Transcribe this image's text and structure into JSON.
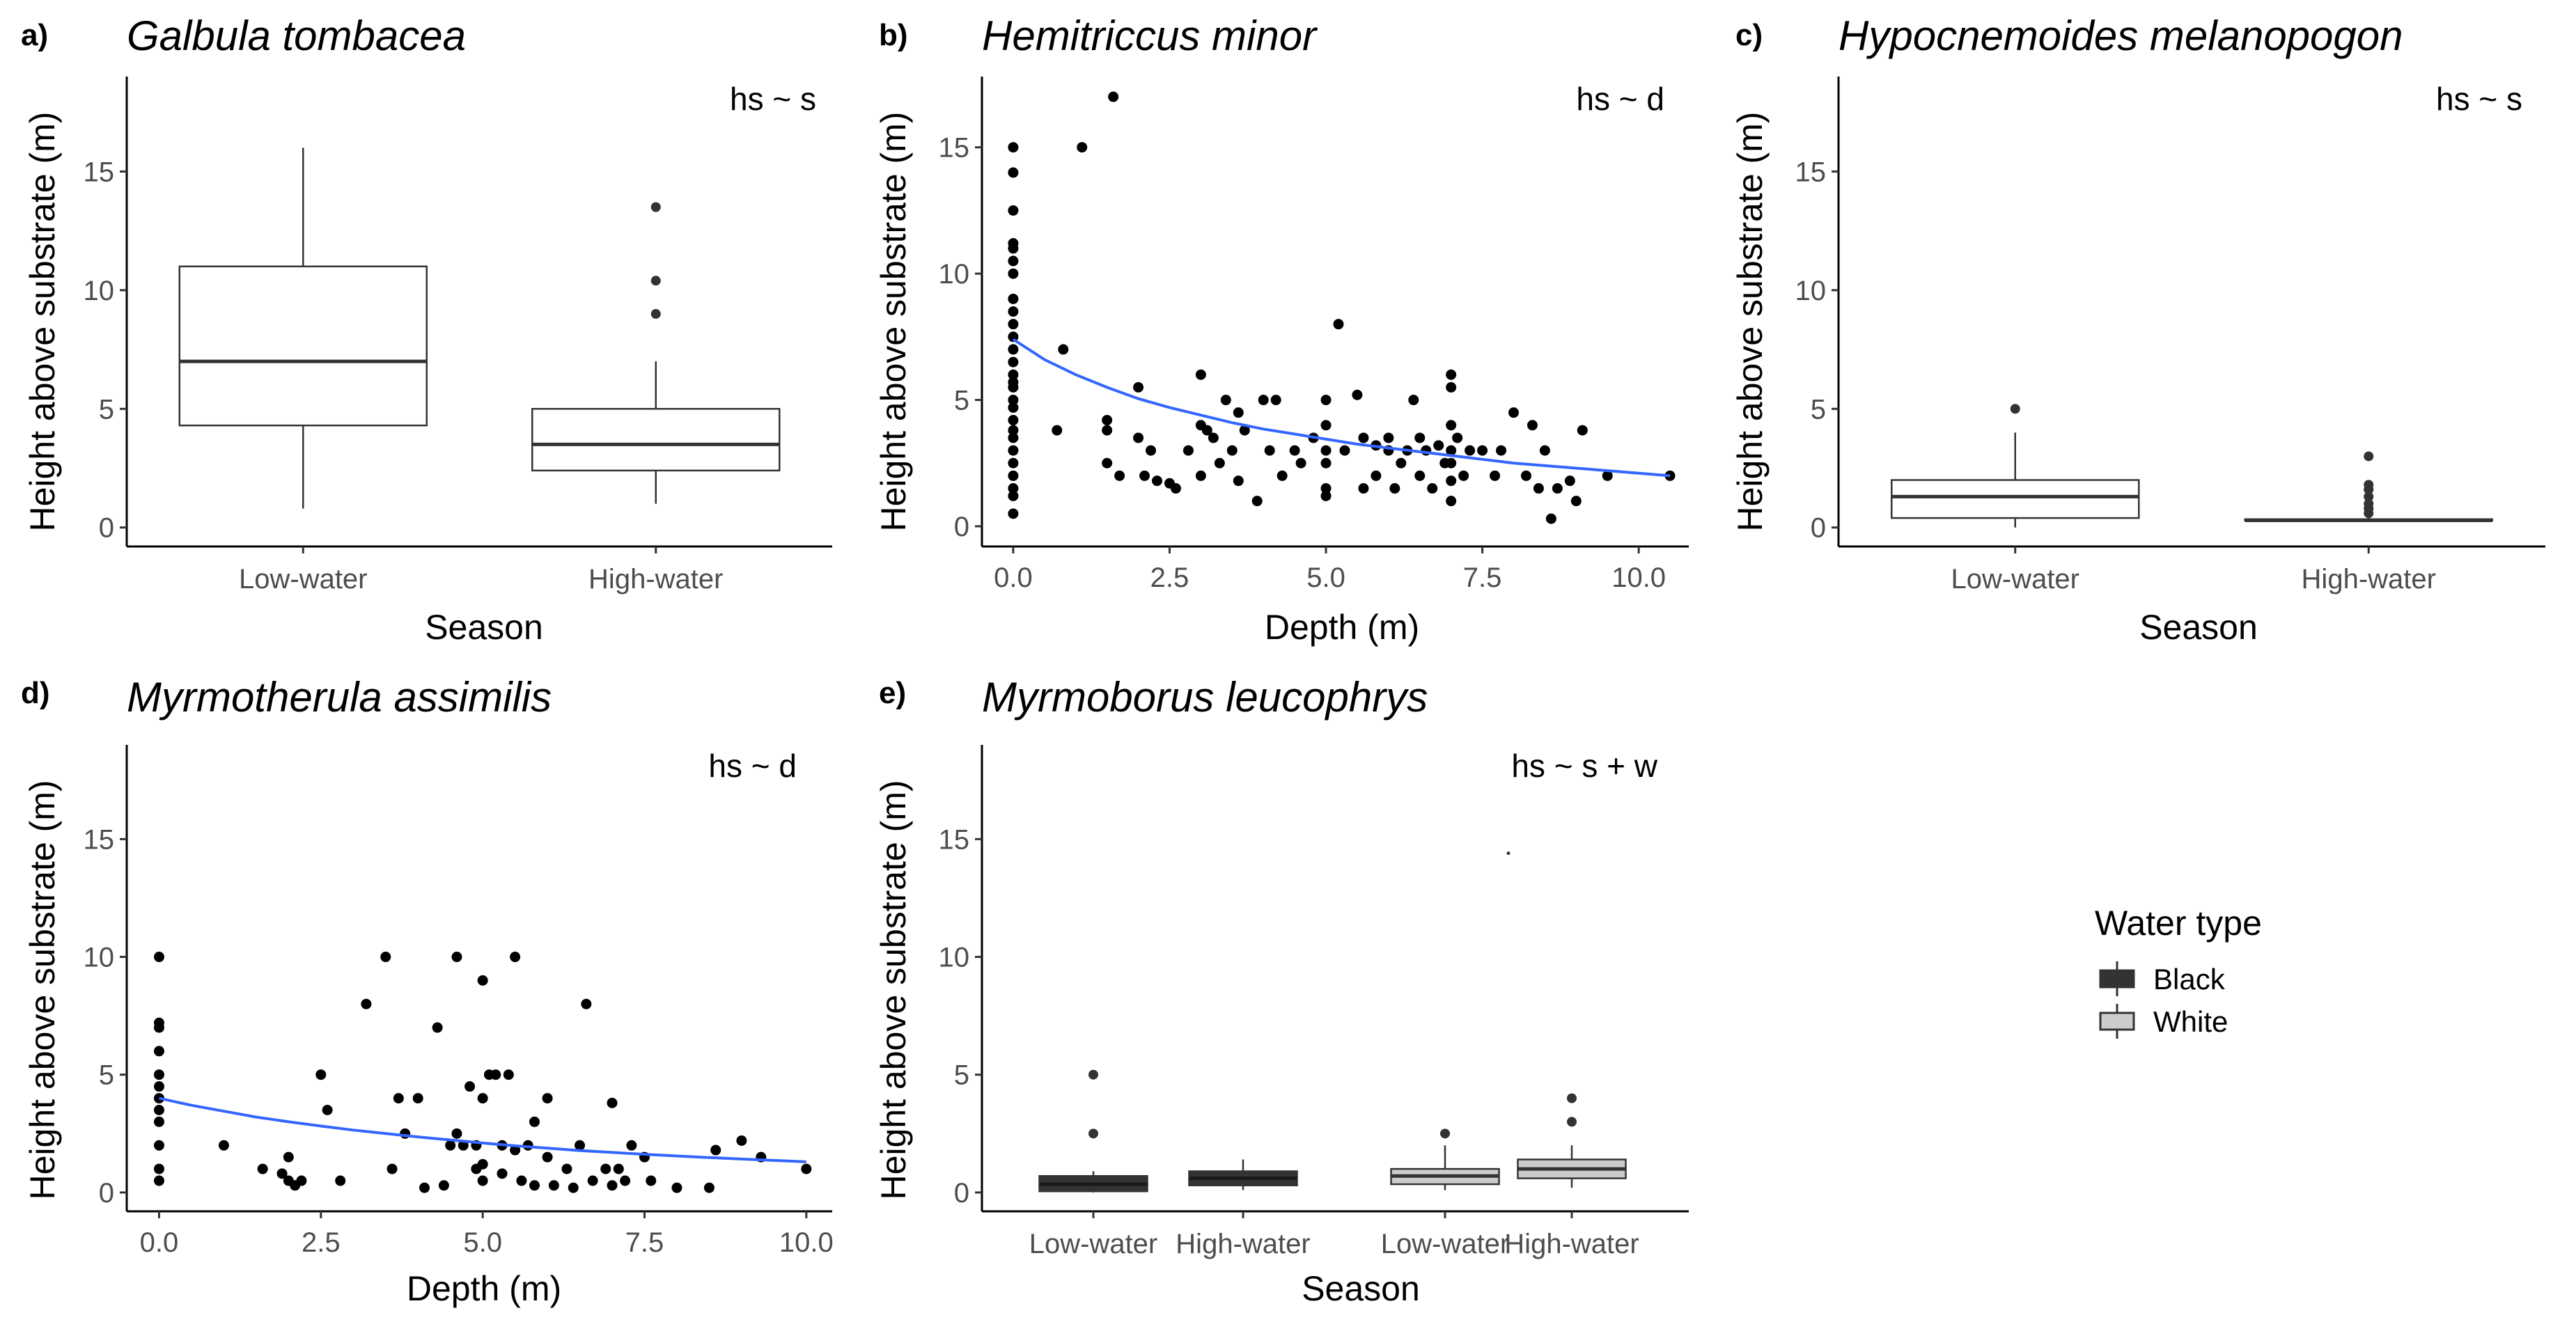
{
  "colors": {
    "fit_line": "#3366ff",
    "black_water": "#333333",
    "white_water": "#cccccc",
    "tick_text": "#4d4d4d"
  },
  "legend": {
    "title": "Water type",
    "items": [
      {
        "label": "Black",
        "fill": "#333333"
      },
      {
        "label": "White",
        "fill": "#cccccc"
      }
    ]
  },
  "chart_data": [
    {
      "id": "a",
      "tag": "a)",
      "type": "box",
      "title": "Galbula tombacea",
      "formula": "hs ~ s",
      "xlabel": "Season",
      "ylabel": "Height above substrate (m)",
      "ylim": [
        -0.8,
        19
      ],
      "yticks": [
        0,
        5,
        10,
        15
      ],
      "categories": [
        "Low-water",
        "High-water"
      ],
      "boxes": [
        {
          "category": "Low-water",
          "fill": "#ffffff",
          "min": 0.8,
          "q1": 4.3,
          "median": 7.0,
          "q3": 11.0,
          "max": 16.0,
          "outliers": []
        },
        {
          "category": "High-water",
          "fill": "#ffffff",
          "min": 1.0,
          "q1": 2.4,
          "median": 3.5,
          "q3": 5.0,
          "max": 7.0,
          "outliers": [
            9.0,
            10.4,
            13.5
          ]
        }
      ]
    },
    {
      "id": "b",
      "tag": "b)",
      "type": "scatter",
      "title": "Hemitriccus minor",
      "formula": "hs ~ d",
      "xlabel": "Depth (m)",
      "ylabel": "Height above substrate (m)",
      "xlim": [
        -0.5,
        10.8
      ],
      "ylim": [
        -0.8,
        17.8
      ],
      "xticks": [
        0,
        2.5,
        5,
        7.5,
        10
      ],
      "xtick_labels": [
        "0.0",
        "2.5",
        "5.0",
        "7.5",
        "10.0"
      ],
      "yticks": [
        0,
        5,
        10,
        15
      ],
      "points": [
        [
          0,
          15
        ],
        [
          0,
          14
        ],
        [
          0,
          12.5
        ],
        [
          0,
          11.2
        ],
        [
          0,
          11
        ],
        [
          0,
          10.5
        ],
        [
          0,
          10
        ],
        [
          0,
          9
        ],
        [
          0,
          8.5
        ],
        [
          0,
          8
        ],
        [
          0,
          7.5
        ],
        [
          0,
          7
        ],
        [
          0,
          6.5
        ],
        [
          0,
          6
        ],
        [
          0,
          5.7
        ],
        [
          0,
          5.5
        ],
        [
          0,
          5
        ],
        [
          0,
          4.7
        ],
        [
          0,
          4.2
        ],
        [
          0,
          3.8
        ],
        [
          0,
          3.5
        ],
        [
          0,
          3
        ],
        [
          0,
          2.5
        ],
        [
          0,
          2
        ],
        [
          0,
          1.5
        ],
        [
          0,
          1.2
        ],
        [
          0,
          0.5
        ],
        [
          0.8,
          7
        ],
        [
          0.7,
          3.8
        ],
        [
          1.1,
          15
        ],
        [
          1.6,
          17
        ],
        [
          1.5,
          4.2
        ],
        [
          1.5,
          3.8
        ],
        [
          1.7,
          2
        ],
        [
          1.5,
          2.5
        ],
        [
          2,
          5.5
        ],
        [
          2,
          3.5
        ],
        [
          2.1,
          2
        ],
        [
          2.2,
          3
        ],
        [
          2.3,
          1.8
        ],
        [
          2.5,
          1.7
        ],
        [
          2.6,
          1.5
        ],
        [
          2.8,
          3
        ],
        [
          3,
          6
        ],
        [
          3,
          4
        ],
        [
          3,
          2
        ],
        [
          3.1,
          3.8
        ],
        [
          3.2,
          3.5
        ],
        [
          3.3,
          2.5
        ],
        [
          3.4,
          5
        ],
        [
          3.5,
          3
        ],
        [
          3.6,
          4.5
        ],
        [
          3.6,
          1.8
        ],
        [
          3.7,
          3.8
        ],
        [
          3.9,
          1
        ],
        [
          4,
          5
        ],
        [
          4.1,
          3
        ],
        [
          4.2,
          5
        ],
        [
          4.3,
          2
        ],
        [
          4.5,
          3
        ],
        [
          4.6,
          2.5
        ],
        [
          4.8,
          3.5
        ],
        [
          5,
          5
        ],
        [
          5,
          4
        ],
        [
          5,
          3
        ],
        [
          5,
          2.5
        ],
        [
          5,
          1.5
        ],
        [
          5,
          1.2
        ],
        [
          5.2,
          8
        ],
        [
          5.3,
          3
        ],
        [
          5.5,
          5.2
        ],
        [
          5.6,
          3.5
        ],
        [
          5.6,
          1.5
        ],
        [
          5.8,
          3.2
        ],
        [
          5.8,
          2
        ],
        [
          6,
          3.5
        ],
        [
          6,
          3
        ],
        [
          6.1,
          1.5
        ],
        [
          6.2,
          2.5
        ],
        [
          6.3,
          3
        ],
        [
          6.4,
          5
        ],
        [
          6.5,
          3.5
        ],
        [
          6.5,
          2
        ],
        [
          6.6,
          3
        ],
        [
          6.7,
          1.5
        ],
        [
          6.8,
          3.2
        ],
        [
          6.9,
          2.5
        ],
        [
          7,
          6
        ],
        [
          7,
          5.5
        ],
        [
          7,
          4
        ],
        [
          7,
          3
        ],
        [
          7,
          2.5
        ],
        [
          7,
          1.8
        ],
        [
          7,
          1
        ],
        [
          7.1,
          3.5
        ],
        [
          7.2,
          2
        ],
        [
          7.3,
          3
        ],
        [
          7.5,
          3
        ],
        [
          7.7,
          2
        ],
        [
          7.8,
          3
        ],
        [
          8,
          4.5
        ],
        [
          8.2,
          2
        ],
        [
          8.3,
          4
        ],
        [
          8.4,
          1.5
        ],
        [
          8.5,
          3
        ],
        [
          8.6,
          0.3
        ],
        [
          8.7,
          1.5
        ],
        [
          8.9,
          1.8
        ],
        [
          9,
          1
        ],
        [
          9.1,
          3.8
        ],
        [
          9.5,
          2
        ],
        [
          10.5,
          2
        ]
      ],
      "fit_curve": {
        "label": "fit",
        "x": [
          0,
          0.5,
          1,
          1.5,
          2,
          2.5,
          3,
          3.5,
          4,
          4.5,
          5,
          5.5,
          6,
          6.5,
          7,
          7.5,
          8,
          8.5,
          9,
          9.5,
          10,
          10.5
        ],
        "y": [
          7.4,
          6.6,
          6.0,
          5.5,
          5.05,
          4.7,
          4.4,
          4.1,
          3.85,
          3.65,
          3.45,
          3.25,
          3.1,
          2.95,
          2.8,
          2.65,
          2.5,
          2.4,
          2.3,
          2.2,
          2.1,
          2.0
        ]
      }
    },
    {
      "id": "c",
      "tag": "c)",
      "type": "box",
      "title": "Hypocnemoides melanopogon",
      "formula": "hs ~ s",
      "xlabel": "Season",
      "ylabel": "Height above substrate (m)",
      "ylim": [
        -0.8,
        19
      ],
      "yticks": [
        0,
        5,
        10,
        15
      ],
      "categories": [
        "Low-water",
        "High-water"
      ],
      "boxes": [
        {
          "category": "Low-water",
          "fill": "#ffffff",
          "min": 0,
          "q1": 0.4,
          "median": 1.3,
          "q3": 2.0,
          "max": 4.0,
          "outliers": [
            5.0
          ]
        },
        {
          "category": "High-water",
          "fill": "#ffffff",
          "min": 0.3,
          "q1": 0.3,
          "median": 0.3,
          "q3": 0.35,
          "max": 0.4,
          "outliers": [
            0.6,
            0.8,
            1.0,
            1.3,
            1.6,
            1.8,
            3.0
          ]
        }
      ]
    },
    {
      "id": "d",
      "tag": "d)",
      "type": "scatter",
      "title": "Myrmotherula assimilis",
      "formula": "hs ~ d",
      "xlabel": "Depth (m)",
      "ylabel": "Height above substrate (m)",
      "xlim": [
        -0.5,
        10.4
      ],
      "ylim": [
        -0.8,
        19
      ],
      "xticks": [
        0,
        2.5,
        5,
        7.5,
        10
      ],
      "xtick_labels": [
        "0.0",
        "2.5",
        "5.0",
        "7.5",
        "10.0"
      ],
      "yticks": [
        0,
        5,
        10,
        15
      ],
      "points": [
        [
          0,
          10
        ],
        [
          0,
          7.2
        ],
        [
          0,
          7
        ],
        [
          0,
          6
        ],
        [
          0,
          5
        ],
        [
          0,
          4.5
        ],
        [
          0,
          4
        ],
        [
          0,
          3.5
        ],
        [
          0,
          3
        ],
        [
          0,
          2
        ],
        [
          0,
          1
        ],
        [
          0,
          0.5
        ],
        [
          1,
          2
        ],
        [
          1.6,
          1
        ],
        [
          1.9,
          0.8
        ],
        [
          2,
          1.5
        ],
        [
          2,
          0.5
        ],
        [
          2.1,
          0.3
        ],
        [
          2.2,
          0.5
        ],
        [
          2.5,
          5
        ],
        [
          2.6,
          3.5
        ],
        [
          2.8,
          0.5
        ],
        [
          3.2,
          8
        ],
        [
          3.5,
          10
        ],
        [
          3.6,
          1
        ],
        [
          3.7,
          4
        ],
        [
          3.8,
          2.5
        ],
        [
          4,
          4
        ],
        [
          4.1,
          0.2
        ],
        [
          4.3,
          7
        ],
        [
          4.4,
          0.3
        ],
        [
          4.5,
          2
        ],
        [
          4.6,
          10
        ],
        [
          4.6,
          2.5
        ],
        [
          4.7,
          2
        ],
        [
          4.8,
          4.5
        ],
        [
          4.9,
          2
        ],
        [
          4.9,
          1
        ],
        [
          5,
          9
        ],
        [
          5,
          4
        ],
        [
          5,
          1.2
        ],
        [
          5,
          0.5
        ],
        [
          5.1,
          5
        ],
        [
          5.2,
          5
        ],
        [
          5.3,
          2
        ],
        [
          5.3,
          0.8
        ],
        [
          5.4,
          5
        ],
        [
          5.5,
          10
        ],
        [
          5.5,
          1.8
        ],
        [
          5.6,
          0.5
        ],
        [
          5.7,
          2
        ],
        [
          5.8,
          3
        ],
        [
          5.8,
          0.3
        ],
        [
          6,
          4
        ],
        [
          6,
          1.5
        ],
        [
          6.1,
          0.3
        ],
        [
          6.3,
          1
        ],
        [
          6.4,
          0.2
        ],
        [
          6.5,
          2
        ],
        [
          6.6,
          8
        ],
        [
          6.7,
          0.5
        ],
        [
          6.9,
          1
        ],
        [
          7,
          3.8
        ],
        [
          7,
          0.3
        ],
        [
          7.1,
          1
        ],
        [
          7.2,
          0.5
        ],
        [
          7.3,
          2
        ],
        [
          7.5,
          1.5
        ],
        [
          7.6,
          0.5
        ],
        [
          8,
          0.2
        ],
        [
          8.5,
          0.2
        ],
        [
          8.6,
          1.8
        ],
        [
          9,
          2.2
        ],
        [
          9.3,
          1.5
        ],
        [
          10,
          1
        ]
      ],
      "fit_curve": {
        "label": "fit",
        "x": [
          0,
          0.5,
          1,
          1.5,
          2,
          2.5,
          3,
          3.5,
          4,
          4.5,
          5,
          5.5,
          6,
          6.5,
          7,
          7.5,
          8,
          8.5,
          9,
          9.5,
          10
        ],
        "y": [
          4.0,
          3.7,
          3.45,
          3.2,
          3.0,
          2.82,
          2.65,
          2.5,
          2.36,
          2.23,
          2.1,
          1.98,
          1.88,
          1.78,
          1.7,
          1.62,
          1.55,
          1.48,
          1.42,
          1.36,
          1.3
        ]
      }
    },
    {
      "id": "e",
      "tag": "e)",
      "type": "box",
      "title": "Myrmoborus leucophrys",
      "formula": "hs ~ s + w",
      "xlabel": "Season",
      "ylabel": "Height above substrate (m)",
      "ylim": [
        -0.8,
        19
      ],
      "yticks": [
        0,
        5,
        10,
        15
      ],
      "categories": [
        "Low-water",
        "High-water",
        "Low-water",
        "High-water"
      ],
      "boxes": [
        {
          "category": "Low-water",
          "fill": "#333333",
          "min": 0,
          "q1": 0.05,
          "median": 0.35,
          "q3": 0.7,
          "max": 0.9,
          "outliers": [
            2.5,
            5.0
          ]
        },
        {
          "category": "High-water",
          "fill": "#333333",
          "min": 0.1,
          "q1": 0.3,
          "median": 0.6,
          "q3": 0.9,
          "max": 1.4,
          "outliers": []
        },
        {
          "category": "Low-water",
          "fill": "#cccccc",
          "min": 0.1,
          "q1": 0.35,
          "median": 0.7,
          "q3": 1.0,
          "max": 2.0,
          "outliers": [
            2.5
          ]
        },
        {
          "category": "High-water",
          "fill": "#cccccc",
          "min": 0.2,
          "q1": 0.6,
          "median": 1.0,
          "q3": 1.4,
          "max": 2.0,
          "outliers": [
            3.0,
            4.0
          ]
        }
      ],
      "stray_points": [
        [
          3,
          14.4
        ]
      ]
    }
  ]
}
